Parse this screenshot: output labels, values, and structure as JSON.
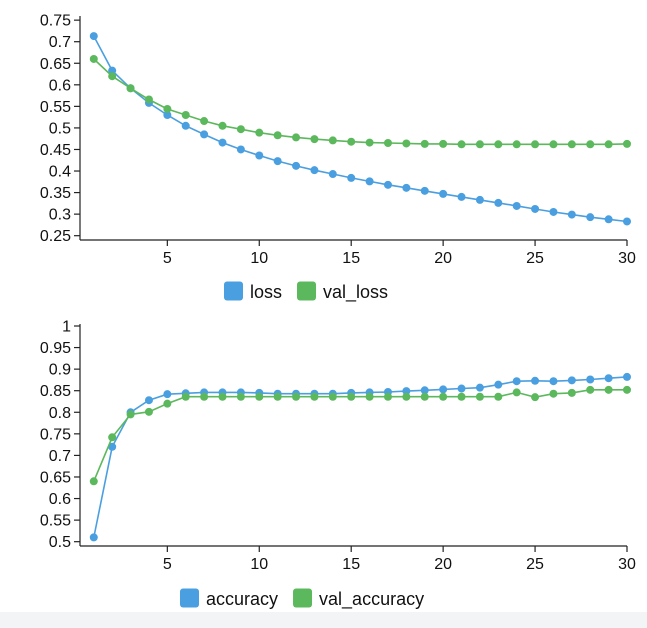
{
  "chart_data": [
    {
      "type": "line",
      "x": [
        1,
        2,
        3,
        4,
        5,
        6,
        7,
        8,
        9,
        10,
        11,
        12,
        13,
        14,
        15,
        16,
        17,
        18,
        19,
        20,
        21,
        22,
        23,
        24,
        25,
        26,
        27,
        28,
        29,
        30
      ],
      "xticks": [
        5,
        10,
        15,
        20,
        25,
        30
      ],
      "xtick_labels": [
        "5",
        "10",
        "15",
        "20",
        "25",
        "30"
      ],
      "xlim": [
        0.25,
        30
      ],
      "ylim": [
        0.24,
        0.755
      ],
      "yticks": [
        0.25,
        0.3,
        0.35,
        0.4,
        0.45,
        0.5,
        0.55,
        0.6,
        0.65,
        0.7,
        0.75
      ],
      "ytick_labels": [
        "0.25",
        "0.3",
        "0.35",
        "0.4",
        "0.45",
        "0.5",
        "0.55",
        "0.6",
        "0.65",
        "0.7",
        "0.75"
      ],
      "grid": false,
      "legend": "bottom-center",
      "series": [
        {
          "name": "loss",
          "color": "#4a9fe0",
          "values": [
            0.713,
            0.633,
            0.592,
            0.558,
            0.53,
            0.505,
            0.485,
            0.466,
            0.45,
            0.436,
            0.423,
            0.412,
            0.402,
            0.393,
            0.384,
            0.376,
            0.368,
            0.361,
            0.354,
            0.347,
            0.34,
            0.333,
            0.326,
            0.319,
            0.312,
            0.305,
            0.299,
            0.293,
            0.288,
            0.283
          ]
        },
        {
          "name": "val_loss",
          "color": "#5cb85c",
          "values": [
            0.66,
            0.62,
            0.592,
            0.566,
            0.544,
            0.53,
            0.516,
            0.505,
            0.497,
            0.489,
            0.483,
            0.478,
            0.474,
            0.471,
            0.468,
            0.466,
            0.465,
            0.464,
            0.463,
            0.463,
            0.462,
            0.462,
            0.462,
            0.462,
            0.462,
            0.462,
            0.462,
            0.462,
            0.462,
            0.463
          ]
        }
      ]
    },
    {
      "type": "line",
      "x": [
        1,
        2,
        3,
        4,
        5,
        6,
        7,
        8,
        9,
        10,
        11,
        12,
        13,
        14,
        15,
        16,
        17,
        18,
        19,
        20,
        21,
        22,
        23,
        24,
        25,
        26,
        27,
        28,
        29,
        30
      ],
      "xticks": [
        5,
        10,
        15,
        20,
        25,
        30
      ],
      "xtick_labels": [
        "5",
        "10",
        "15",
        "20",
        "25",
        "30"
      ],
      "xlim": [
        0.25,
        30
      ],
      "ylim": [
        0.49,
        1.0
      ],
      "yticks": [
        0.5,
        0.55,
        0.6,
        0.65,
        0.7,
        0.75,
        0.8,
        0.85,
        0.9,
        0.95,
        1
      ],
      "ytick_labels": [
        "0.5",
        "0.55",
        "0.6",
        "0.65",
        "0.7",
        "0.75",
        "0.8",
        "0.85",
        "0.9",
        "0.95",
        "1"
      ],
      "grid": false,
      "legend": "bottom-center",
      "series": [
        {
          "name": "accuracy",
          "color": "#4a9fe0",
          "values": [
            0.51,
            0.72,
            0.8,
            0.828,
            0.842,
            0.844,
            0.846,
            0.846,
            0.846,
            0.845,
            0.843,
            0.843,
            0.843,
            0.843,
            0.845,
            0.846,
            0.847,
            0.849,
            0.851,
            0.853,
            0.855,
            0.857,
            0.864,
            0.872,
            0.873,
            0.872,
            0.874,
            0.876,
            0.879,
            0.882
          ]
        },
        {
          "name": "val_accuracy",
          "color": "#5cb85c",
          "values": [
            0.64,
            0.742,
            0.795,
            0.801,
            0.82,
            0.836,
            0.836,
            0.836,
            0.836,
            0.836,
            0.836,
            0.836,
            0.836,
            0.836,
            0.836,
            0.836,
            0.836,
            0.836,
            0.836,
            0.836,
            0.836,
            0.836,
            0.836,
            0.846,
            0.835,
            0.843,
            0.845,
            0.852,
            0.852,
            0.852
          ]
        }
      ]
    }
  ]
}
